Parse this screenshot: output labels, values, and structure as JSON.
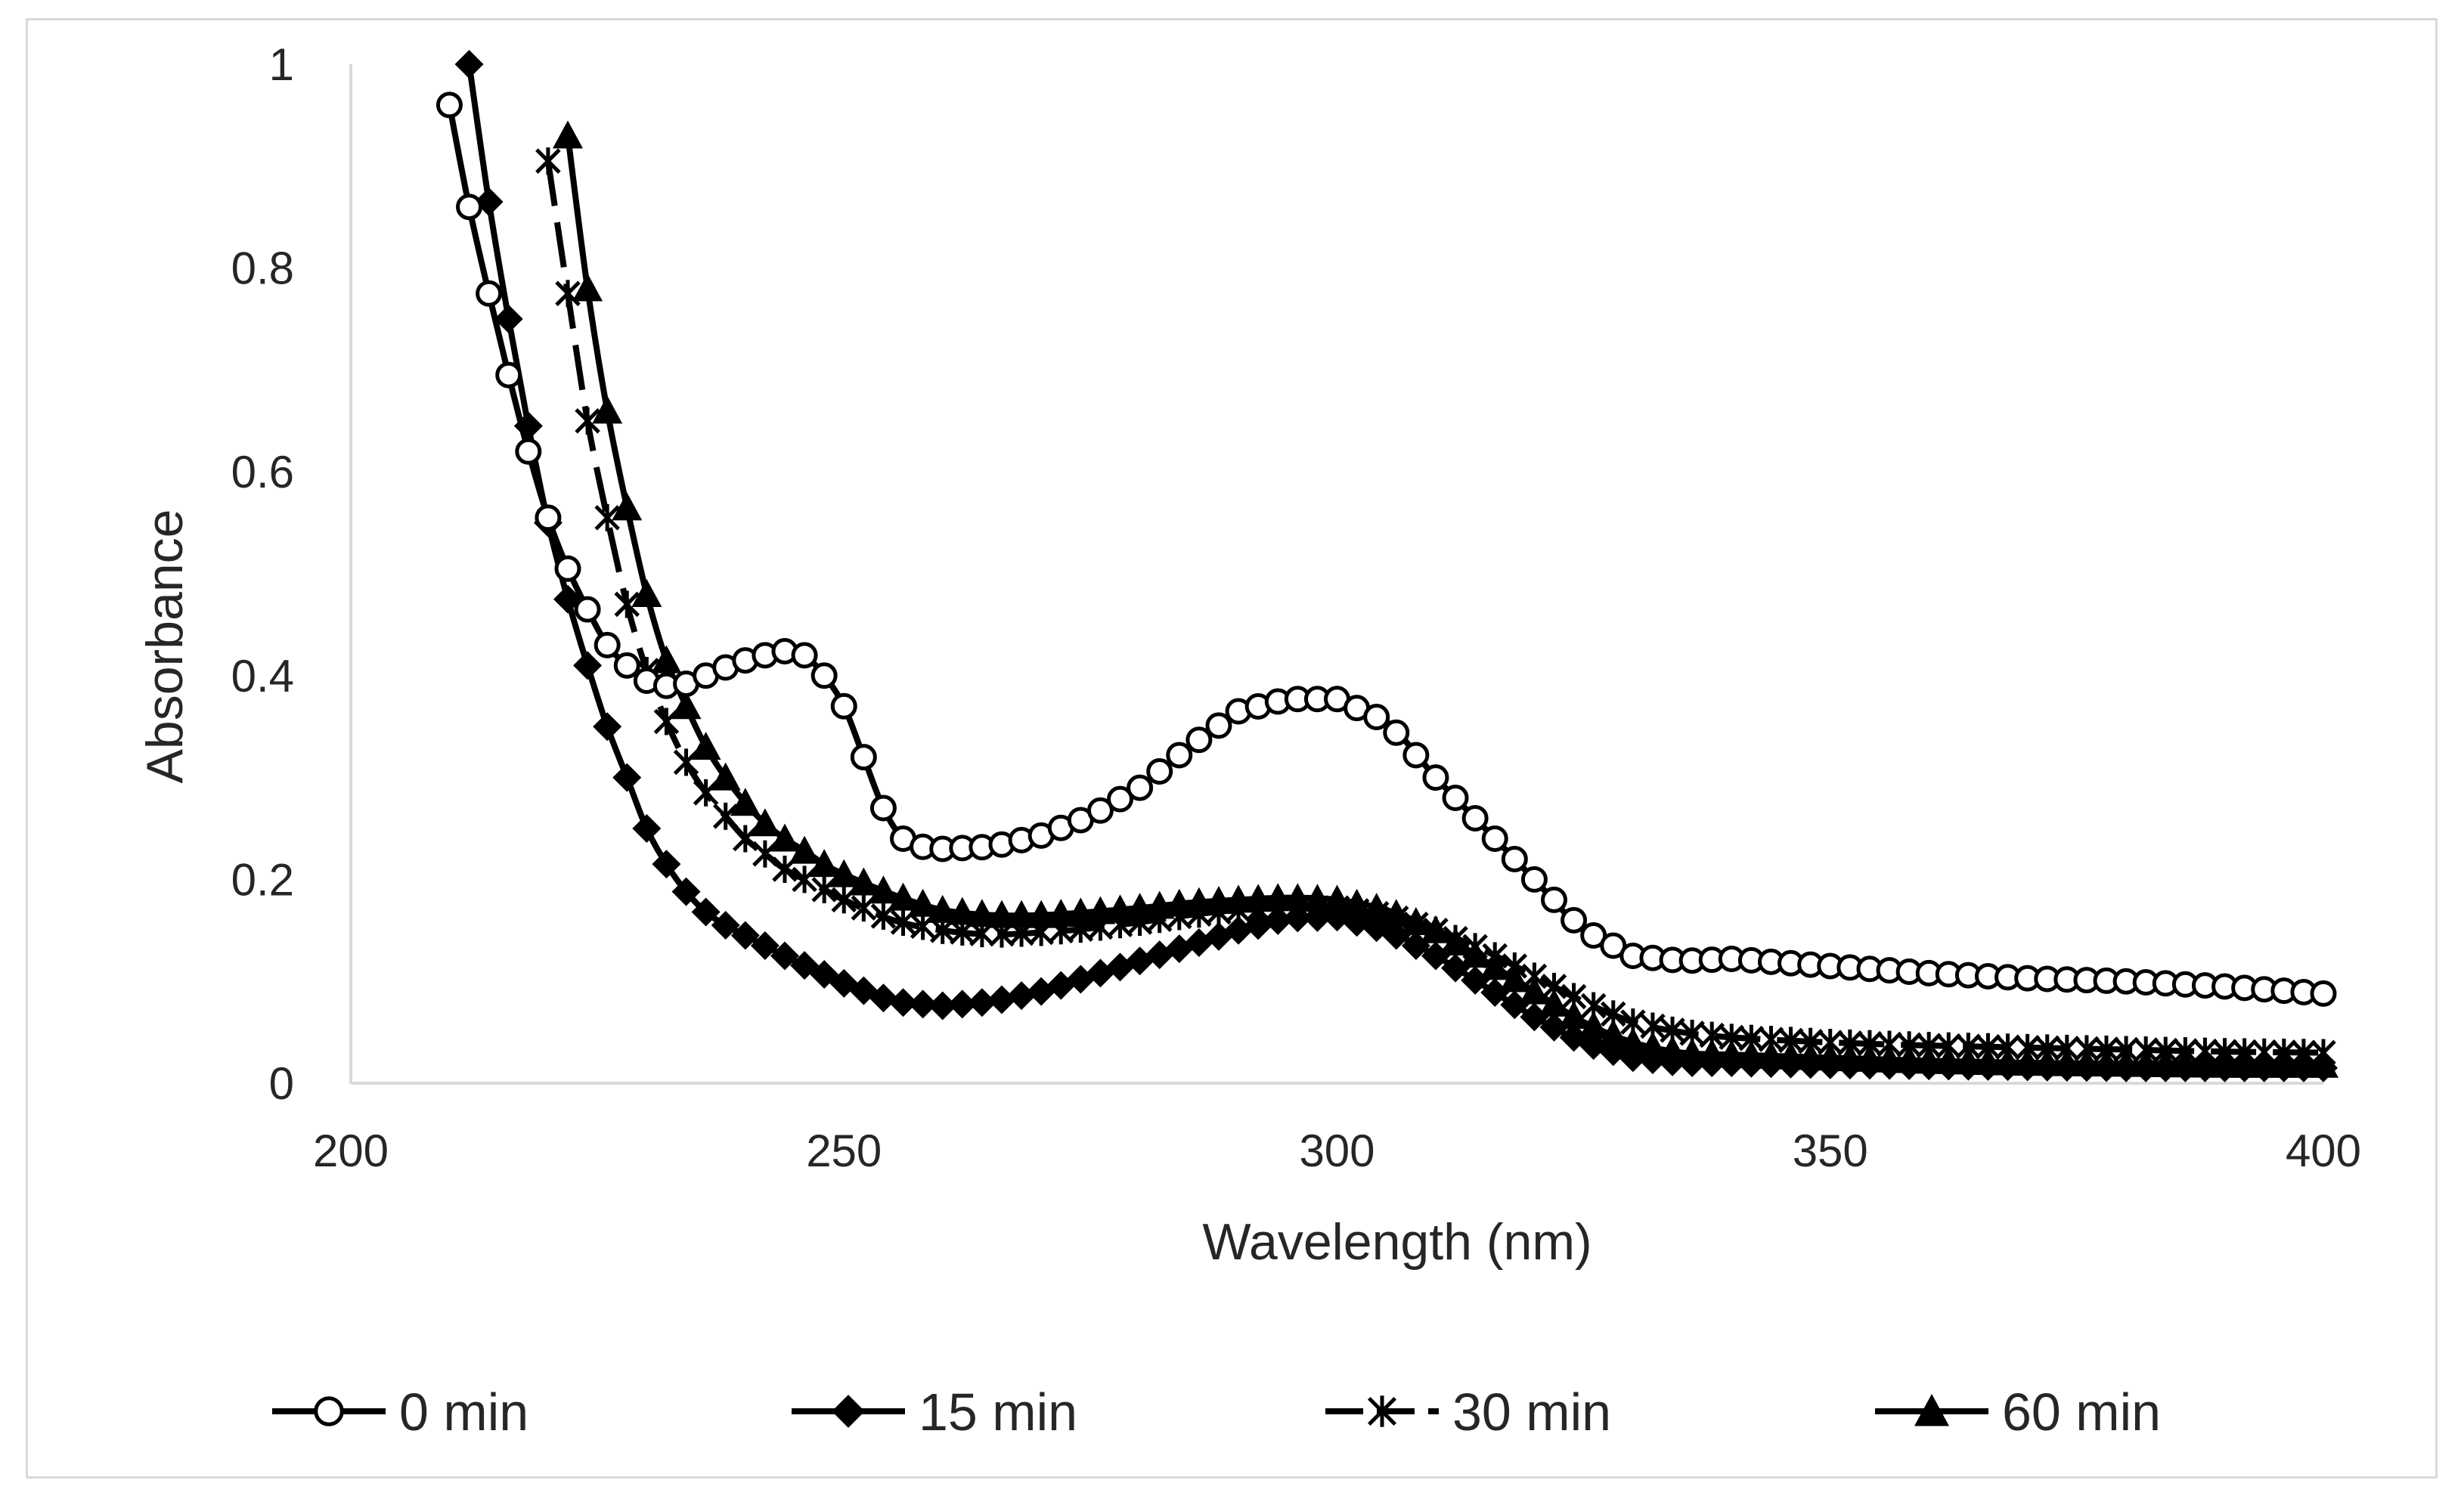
{
  "chart_data": {
    "type": "line",
    "title": "",
    "xlabel": "Wavelength (nm)",
    "ylabel": "Absorbance",
    "xlim": [
      200,
      400
    ],
    "ylim": [
      0,
      1
    ],
    "xticks": [
      200,
      250,
      300,
      350,
      400
    ],
    "yticks": [
      0,
      0.2,
      0.4,
      0.6,
      0.8,
      1
    ],
    "ytick_labels": [
      "0",
      "0.2",
      "0.4",
      "0.6",
      "0.8",
      "1"
    ],
    "grid": false,
    "legend_position": "bottom",
    "sample_step_nm": 2,
    "series": [
      {
        "name": "0 min",
        "marker": "open-circle",
        "line_style": "solid",
        "color": "#000000",
        "x": [
          210,
          212,
          214,
          216,
          218,
          220,
          222,
          224,
          226,
          228,
          230,
          232,
          234,
          236,
          238,
          240,
          242,
          244,
          246,
          248,
          250,
          252,
          254,
          256,
          258,
          260,
          265,
          270,
          275,
          280,
          285,
          290,
          295,
          300,
          305,
          310,
          315,
          320,
          325,
          330,
          335,
          340,
          350,
          360,
          370,
          380,
          390,
          400
        ],
        "y": [
          0.96,
          0.86,
          0.775,
          0.695,
          0.62,
          0.555,
          0.505,
          0.465,
          0.43,
          0.41,
          0.395,
          0.39,
          0.392,
          0.4,
          0.408,
          0.415,
          0.42,
          0.424,
          0.42,
          0.4,
          0.37,
          0.32,
          0.27,
          0.24,
          0.232,
          0.23,
          0.232,
          0.243,
          0.262,
          0.29,
          0.33,
          0.365,
          0.377,
          0.377,
          0.355,
          0.3,
          0.25,
          0.2,
          0.15,
          0.125,
          0.12,
          0.122,
          0.115,
          0.108,
          0.103,
          0.1,
          0.095,
          0.088
        ]
      },
      {
        "name": "15 min",
        "marker": "filled-diamond",
        "line_style": "solid",
        "color": "#000000",
        "x": [
          212,
          214,
          216,
          218,
          220,
          222,
          224,
          226,
          228,
          230,
          232,
          234,
          236,
          238,
          240,
          245,
          250,
          255,
          260,
          265,
          270,
          275,
          280,
          285,
          290,
          295,
          300,
          305,
          310,
          315,
          320,
          325,
          330,
          335,
          340,
          350,
          360,
          370,
          380,
          390,
          400
        ],
        "y": [
          1.0,
          0.865,
          0.75,
          0.645,
          0.55,
          0.475,
          0.41,
          0.35,
          0.3,
          0.25,
          0.215,
          0.188,
          0.168,
          0.155,
          0.145,
          0.12,
          0.098,
          0.08,
          0.076,
          0.08,
          0.09,
          0.105,
          0.12,
          0.135,
          0.15,
          0.162,
          0.163,
          0.15,
          0.125,
          0.095,
          0.065,
          0.04,
          0.025,
          0.02,
          0.02,
          0.018,
          0.017,
          0.016,
          0.015,
          0.015,
          0.015
        ]
      },
      {
        "name": "30 min",
        "marker": "star-x",
        "line_style": "long-dash",
        "color": "#000000",
        "x": [
          220,
          222,
          224,
          226,
          228,
          230,
          232,
          234,
          236,
          238,
          240,
          242,
          244,
          246,
          248,
          250,
          255,
          260,
          265,
          270,
          275,
          280,
          285,
          290,
          295,
          300,
          305,
          310,
          315,
          320,
          325,
          330,
          335,
          340,
          350,
          360,
          370,
          380,
          390,
          400
        ],
        "y": [
          0.905,
          0.775,
          0.65,
          0.555,
          0.47,
          0.405,
          0.355,
          0.315,
          0.285,
          0.262,
          0.24,
          0.225,
          0.21,
          0.2,
          0.19,
          0.18,
          0.16,
          0.15,
          0.146,
          0.148,
          0.152,
          0.158,
          0.165,
          0.17,
          0.172,
          0.172,
          0.165,
          0.15,
          0.13,
          0.105,
          0.08,
          0.06,
          0.05,
          0.045,
          0.04,
          0.037,
          0.035,
          0.033,
          0.031,
          0.03
        ]
      },
      {
        "name": "60 min",
        "marker": "filled-triangle",
        "line_style": "solid",
        "color": "#000000",
        "x": [
          222,
          224,
          226,
          228,
          230,
          232,
          234,
          236,
          238,
          240,
          242,
          244,
          246,
          248,
          250,
          255,
          260,
          265,
          270,
          275,
          280,
          285,
          290,
          295,
          300,
          305,
          310,
          315,
          320,
          325,
          330,
          335,
          340,
          350,
          360,
          370,
          380,
          390,
          400
        ],
        "y": [
          0.93,
          0.78,
          0.66,
          0.565,
          0.48,
          0.415,
          0.37,
          0.33,
          0.3,
          0.275,
          0.255,
          0.24,
          0.228,
          0.215,
          0.205,
          0.185,
          0.17,
          0.165,
          0.165,
          0.168,
          0.172,
          0.177,
          0.18,
          0.182,
          0.18,
          0.17,
          0.15,
          0.12,
          0.09,
          0.06,
          0.04,
          0.03,
          0.028,
          0.025,
          0.022,
          0.02,
          0.019,
          0.018,
          0.018
        ]
      }
    ]
  }
}
